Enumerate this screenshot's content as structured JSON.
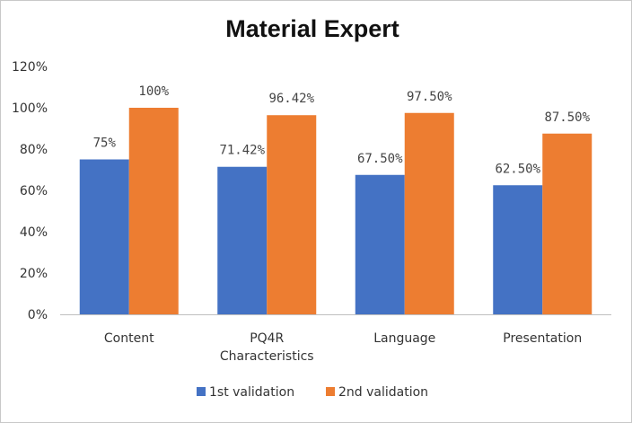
{
  "chart_data": {
    "type": "bar",
    "title": "Material Expert",
    "categories": [
      "Content",
      "PQ4R Characteristics",
      "Language",
      "Presentation"
    ],
    "category_lines": [
      [
        "Content"
      ],
      [
        "PQ4R",
        "Characteristics"
      ],
      [
        "Language"
      ],
      [
        "Presentation"
      ]
    ],
    "series": [
      {
        "name": "1st validation",
        "color": "#4472c4",
        "values": [
          75,
          71.42,
          67.5,
          62.5
        ],
        "labels": [
          "75%",
          "71.42%",
          "67.50%",
          "62.50%"
        ]
      },
      {
        "name": "2nd validation",
        "color": "#ed7d31",
        "values": [
          100,
          96.42,
          97.5,
          87.5
        ],
        "labels": [
          "100%",
          "96.42%",
          "97.50%",
          "87.50%"
        ]
      }
    ],
    "ylim": [
      0,
      120
    ],
    "yticks": [
      "0%",
      "20%",
      "40%",
      "60%",
      "80%",
      "100%",
      "120%"
    ],
    "grid": false,
    "legend_position": "bottom"
  }
}
